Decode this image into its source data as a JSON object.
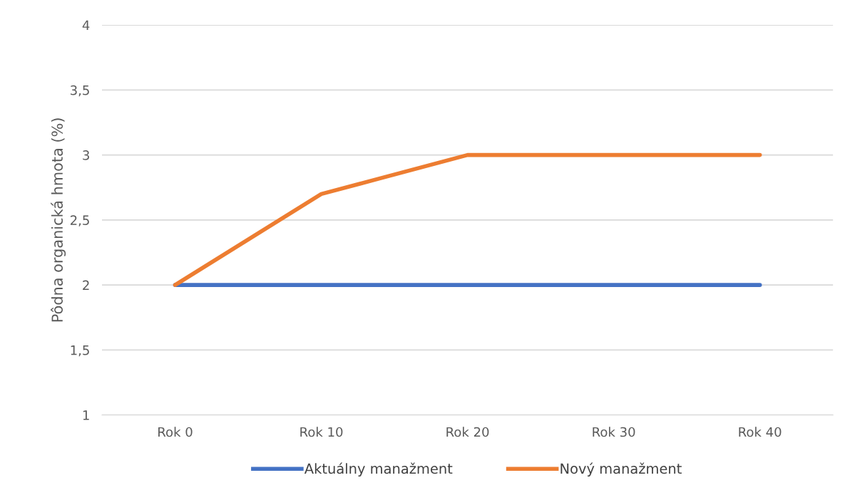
{
  "chart_data": {
    "type": "line",
    "ylabel": "Pôdna organická hmota (%)",
    "categories": [
      "Rok 0",
      "Rok 10",
      "Rok 20",
      "Rok 30",
      "Rok 40"
    ],
    "series": [
      {
        "name": "Aktuálny manažment",
        "color": "#4472c4",
        "values": [
          2,
          2,
          2,
          2,
          2
        ]
      },
      {
        "name": "Nový manažment",
        "color": "#ed7d31",
        "values": [
          2,
          2.7,
          3,
          3,
          3
        ]
      }
    ],
    "ylim": [
      1,
      4
    ],
    "yticks": [
      1,
      {
        "value": 1.5,
        "label": "1,5"
      },
      2,
      {
        "value": 2.5,
        "label": "2,5"
      },
      3,
      {
        "value": 3.5,
        "label": "3,5"
      },
      4
    ],
    "grid": "y",
    "legend": "bottom",
    "marker": "none",
    "line_style": "solid"
  }
}
